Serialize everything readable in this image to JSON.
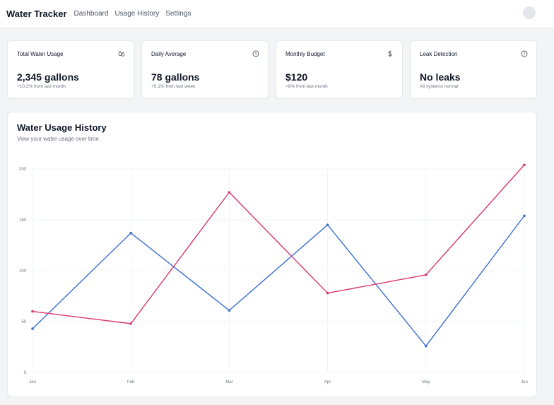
{
  "header": {
    "brand": "Water Tracker",
    "nav": [
      "Dashboard",
      "Usage History",
      "Settings"
    ]
  },
  "stats": [
    {
      "title": "Total Water Usage",
      "value": "2,345 gallons",
      "sub": "+10.2% from last month",
      "icon": "droplets-icon"
    },
    {
      "title": "Daily Average",
      "value": "78 gallons",
      "sub": "+5.1% from last week",
      "icon": "clock-icon"
    },
    {
      "title": "Monthly Budget",
      "value": "$120",
      "sub": "+8% from last month",
      "icon": "dollar-icon"
    },
    {
      "title": "Leak Detection",
      "value": "No leaks",
      "sub": "All systems normal",
      "icon": "alert-circle-icon"
    }
  ],
  "chart_card": {
    "title": "Water Usage History",
    "subtitle": "View your water usage over time."
  },
  "chart_data": {
    "type": "line",
    "categories": [
      "Jan",
      "Feb",
      "Mar",
      "Apr",
      "May",
      "Jun"
    ],
    "yticks": [
      "0",
      "50",
      "100",
      "150",
      "200"
    ],
    "ylim": [
      0,
      200
    ],
    "grid": true,
    "series": [
      {
        "color": "#3b6fd4",
        "values": [
          43,
          137,
          61,
          145,
          26,
          154
        ]
      },
      {
        "color": "#d9366b",
        "values": [
          60,
          48,
          177,
          78,
          96,
          204
        ]
      }
    ]
  }
}
